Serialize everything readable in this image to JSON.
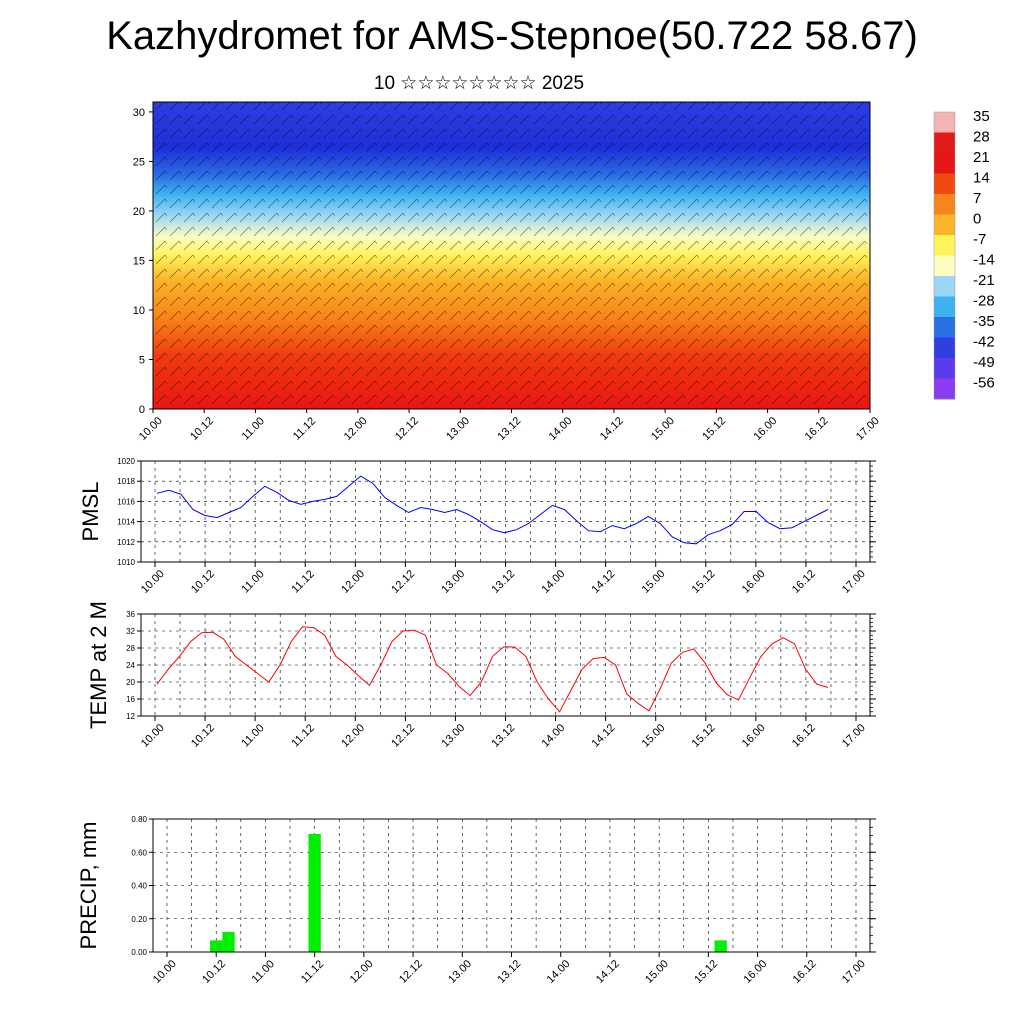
{
  "header": {
    "title": "Kazhydromet for AMS-Stepnoe(50.722 58.67)",
    "subtitle": "10 ☆☆☆☆☆☆☆☆ 2025"
  },
  "chart_data": [
    {
      "type": "heatmap",
      "title": "",
      "x_ticks": [
        "10.00",
        "10.12",
        "11.00",
        "11.12",
        "12.00",
        "12.12",
        "13.00",
        "13.12",
        "14.00",
        "14.12",
        "15.00",
        "15.12",
        "16.00",
        "16.12",
        "17.00"
      ],
      "y_ticks": [
        0,
        5,
        10,
        15,
        20,
        25,
        30
      ],
      "ylim": [
        0,
        31
      ],
      "colorbar": {
        "labels": [
          "35",
          "28",
          "21",
          "14",
          "7",
          "0",
          "-7",
          "-14",
          "-21",
          "-28",
          "-35",
          "-42",
          "-49",
          "-56"
        ],
        "colors": [
          "#f2b4b4",
          "#e21a1a",
          "#e81515",
          "#f04a10",
          "#f7861a",
          "#fbb42a",
          "#fff35a",
          "#fdfdc0",
          "#9bd6f5",
          "#3cb2f0",
          "#2a6fe5",
          "#2f3fe0",
          "#5a3bed",
          "#8b3cf0"
        ]
      },
      "overlay": "wind barbs"
    },
    {
      "type": "line",
      "ylabel": "PMSL",
      "ylim": [
        1010,
        1020
      ],
      "y_ticks": [
        "1010",
        "1012",
        "1014",
        "1016",
        "1018",
        "1020"
      ],
      "x_ticks": [
        "10.00",
        "10.12",
        "11.00",
        "11.12",
        "12.00",
        "12.12",
        "13.00",
        "13.12",
        "14.00",
        "14.12",
        "15.00",
        "15.12",
        "16.00",
        "16.12",
        "17.00"
      ],
      "color": "#0000ff",
      "values": [
        1016.8,
        1017.1,
        1016.7,
        1015.2,
        1014.6,
        1014.4,
        1014.9,
        1015.4,
        1016.5,
        1017.5,
        1016.9,
        1016.1,
        1015.7,
        1016.0,
        1016.2,
        1016.5,
        1017.5,
        1018.5,
        1017.8,
        1016.4,
        1015.6,
        1014.9,
        1015.4,
        1015.2,
        1014.9,
        1015.2,
        1014.7,
        1014.0,
        1013.2,
        1012.9,
        1013.2,
        1013.8,
        1014.7,
        1015.6,
        1015.2,
        1014.1,
        1013.1,
        1013.0,
        1013.6,
        1013.3,
        1013.8,
        1014.5,
        1013.8,
        1012.5,
        1011.9,
        1011.8,
        1012.7,
        1013.1,
        1013.7,
        1015.0,
        1015.0,
        1013.9,
        1013.3,
        1013.4,
        1014.0,
        1014.6,
        1015.2
      ]
    },
    {
      "type": "line",
      "ylabel": "TEMP at 2 M",
      "ylim": [
        12,
        36
      ],
      "y_ticks": [
        "12",
        "16",
        "20",
        "24",
        "28",
        "32",
        "36"
      ],
      "x_ticks": [
        "10.00",
        "10.12",
        "11.00",
        "11.12",
        "12.00",
        "12.12",
        "13.00",
        "13.12",
        "14.00",
        "14.12",
        "15.00",
        "15.12",
        "16.00",
        "16.12",
        "17.00"
      ],
      "color": "#ff0000",
      "values": [
        19.5,
        23.0,
        26.0,
        29.5,
        31.6,
        31.7,
        30.0,
        26.0,
        24.0,
        22.0,
        20.0,
        24.0,
        29.5,
        33.0,
        32.8,
        31.0,
        26.0,
        24.0,
        21.5,
        19.2,
        24.0,
        29.5,
        32.0,
        32.2,
        31.0,
        24.0,
        22.0,
        19.0,
        16.8,
        20.0,
        26.0,
        28.3,
        28.2,
        26.0,
        20.0,
        16.0,
        13.0,
        18.0,
        23.0,
        25.5,
        25.8,
        24.0,
        17.2,
        15.0,
        13.2,
        18.5,
        24.5,
        27.0,
        27.8,
        24.5,
        19.8,
        17.0,
        15.8,
        21.0,
        26.0,
        29.0,
        30.4,
        29.0,
        23.0,
        19.5,
        18.7
      ]
    },
    {
      "type": "bar",
      "ylabel": "PRECIP, mm",
      "ylim": [
        0,
        0.8
      ],
      "y_ticks": [
        "0.00",
        "0.20",
        "0.40",
        "0.60",
        "0.80"
      ],
      "x_ticks": [
        "10.00",
        "10.12",
        "11.00",
        "11.12",
        "12.00",
        "12.12",
        "13.00",
        "13.12",
        "14.00",
        "14.12",
        "15.00",
        "15.12",
        "16.00",
        "16.12",
        "17.00"
      ],
      "color": "#00ee00",
      "bars": [
        {
          "x": 4,
          "value": 0.07
        },
        {
          "x": 5,
          "value": 0.12
        },
        {
          "x": 12,
          "value": 0.71
        },
        {
          "x": 45,
          "value": 0.07
        }
      ]
    }
  ]
}
